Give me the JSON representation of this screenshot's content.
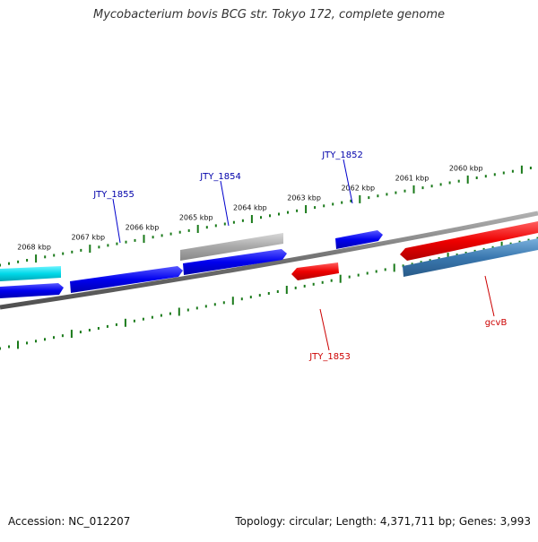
{
  "title": "Mycobacterium bovis BCG str. Tokyo 172, complete genome",
  "footer": {
    "accession": "Accession: NC_012207",
    "summary": "Topology: circular; Length: 4,371,711 bp; Genes: 3,993"
  },
  "colors": {
    "forward_gene": "#0000ee",
    "forward_gene_light": "#3a3aff",
    "reverse_gene": "#ee0000",
    "reverse_gene_light": "#ff3a3a",
    "cyan_feature": "#00d8e8",
    "grey_feature": "#a8a8a8",
    "steel_feature": "#3a78b0",
    "backbone": "#707070",
    "tick": "#1a7a1a",
    "forward_label": "#0000aa",
    "reverse_label": "#cc0000"
  },
  "ticks": {
    "upper": [
      "2068 kbp",
      "2067 kbp",
      "2066 kbp",
      "2065 kbp",
      "2064 kbp",
      "2063 kbp",
      "2062 kbp",
      "2061 kbp",
      "2060 kbp"
    ]
  },
  "genes": [
    {
      "id": "cyan",
      "name": "",
      "strand": "+",
      "color": "cyan_feature"
    },
    {
      "id": "grey",
      "name": "",
      "strand": "+",
      "color": "grey_feature"
    },
    {
      "id": "g1",
      "name": "",
      "strand": "+",
      "color": "forward_gene"
    },
    {
      "id": "g2",
      "name": "JTY_1855",
      "strand": "+",
      "color": "forward_gene"
    },
    {
      "id": "g3",
      "name": "JTY_1854",
      "strand": "+",
      "color": "forward_gene"
    },
    {
      "id": "g4",
      "name": "JTY_1852",
      "strand": "+",
      "color": "forward_gene"
    },
    {
      "id": "r1",
      "name": "JTY_1853",
      "strand": "-",
      "color": "reverse_gene"
    },
    {
      "id": "r2",
      "name": "",
      "strand": "-",
      "color": "reverse_gene"
    },
    {
      "id": "s1",
      "name": "gcvB",
      "strand": "-",
      "color": "steel_feature"
    }
  ],
  "labels": {
    "g2": "JTY_1855",
    "g3": "JTY_1854",
    "g4": "JTY_1852",
    "r1": "JTY_1853",
    "s1": "gcvB"
  }
}
